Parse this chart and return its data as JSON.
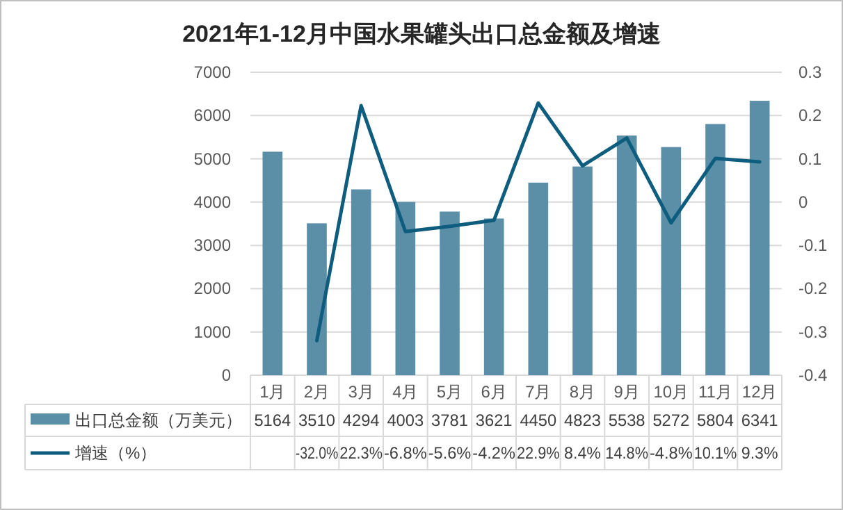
{
  "chart_data": {
    "type": "bar",
    "title": "2021年1-12月中国水果罐头出口总金额及增速",
    "categories": [
      "1月",
      "2月",
      "3月",
      "4月",
      "5月",
      "6月",
      "7月",
      "8月",
      "9月",
      "10月",
      "11月",
      "12月"
    ],
    "series": [
      {
        "name": "出口总金额（万美元）",
        "color": "#5b8fa8",
        "values": [
          5164,
          3510,
          4294,
          4003,
          3781,
          3621,
          4450,
          4823,
          5538,
          5272,
          5804,
          6341
        ],
        "value_labels": [
          "5164",
          "3510",
          "4294",
          "4003",
          "3781",
          "3621",
          "4450",
          "4823",
          "5538",
          "5272",
          "5804",
          "6341"
        ]
      },
      {
        "name": "增速（%）",
        "type": "line",
        "axis": "y2",
        "color": "#0e5c7e",
        "values": [
          null,
          -0.32,
          0.223,
          -0.068,
          -0.056,
          -0.042,
          0.229,
          0.084,
          0.148,
          -0.048,
          0.101,
          0.093
        ],
        "value_labels": [
          null,
          "-32.0%",
          "22.3%",
          "-6.8%",
          "-5.6%",
          "-4.2%",
          "22.9%",
          "8.4%",
          "14.8%",
          "-4.8%",
          "10.1%",
          "9.3%"
        ]
      }
    ],
    "ylim": [
      0,
      7000
    ],
    "yticks": [
      0,
      1000,
      2000,
      3000,
      4000,
      5000,
      6000,
      7000
    ],
    "y2lim": [
      -0.4,
      0.3
    ],
    "y2ticks": [
      -0.4,
      -0.3,
      -0.2,
      -0.1,
      0,
      0.1,
      0.2,
      0.3
    ],
    "grid": "y",
    "legend": "bottom"
  }
}
